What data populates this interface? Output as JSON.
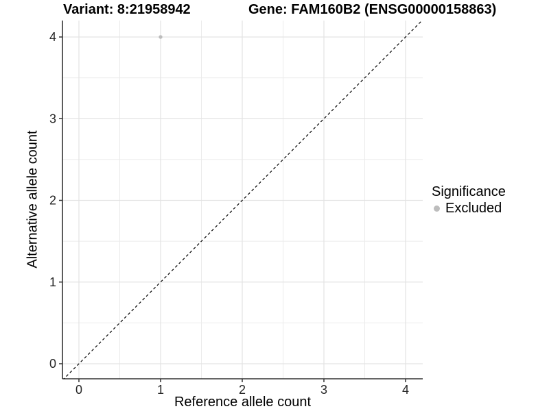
{
  "titles": {
    "variant": "Variant: 8:21958942",
    "gene": "Gene: FAM160B2 (ENSG00000158863)"
  },
  "axes": {
    "x_label": "Reference allele count",
    "y_label": "Alternative allele count"
  },
  "legend": {
    "title": "Significance",
    "items": [
      {
        "label": "Excluded",
        "color": "#bdbdbd"
      }
    ]
  },
  "chart_data": {
    "type": "scatter",
    "title": "Variant: 8:21958942 | Gene: FAM160B2 (ENSG00000158863)",
    "xlabel": "Reference allele count",
    "ylabel": "Alternative allele count",
    "xlim": [
      -0.2,
      4.2
    ],
    "ylim": [
      -0.2,
      4.2
    ],
    "x_ticks": [
      0,
      1,
      2,
      3,
      4
    ],
    "y_ticks": [
      0,
      1,
      2,
      3,
      4
    ],
    "minor_step": 0.5,
    "grid": true,
    "legend_position": "right",
    "series": [
      {
        "name": "Excluded",
        "color": "#bdbdbd",
        "points": [
          [
            1,
            4
          ]
        ],
        "point_radius": 2.7
      }
    ],
    "reference_line": {
      "type": "identity",
      "slope": 1,
      "intercept": 0,
      "style": "dashed",
      "color": "#000000"
    },
    "colors": {
      "grid_major": "#e3e3e3",
      "grid_minor": "#ebebeb",
      "axis": "#333333",
      "tick_text": "#262626",
      "background": "#ffffff"
    }
  }
}
